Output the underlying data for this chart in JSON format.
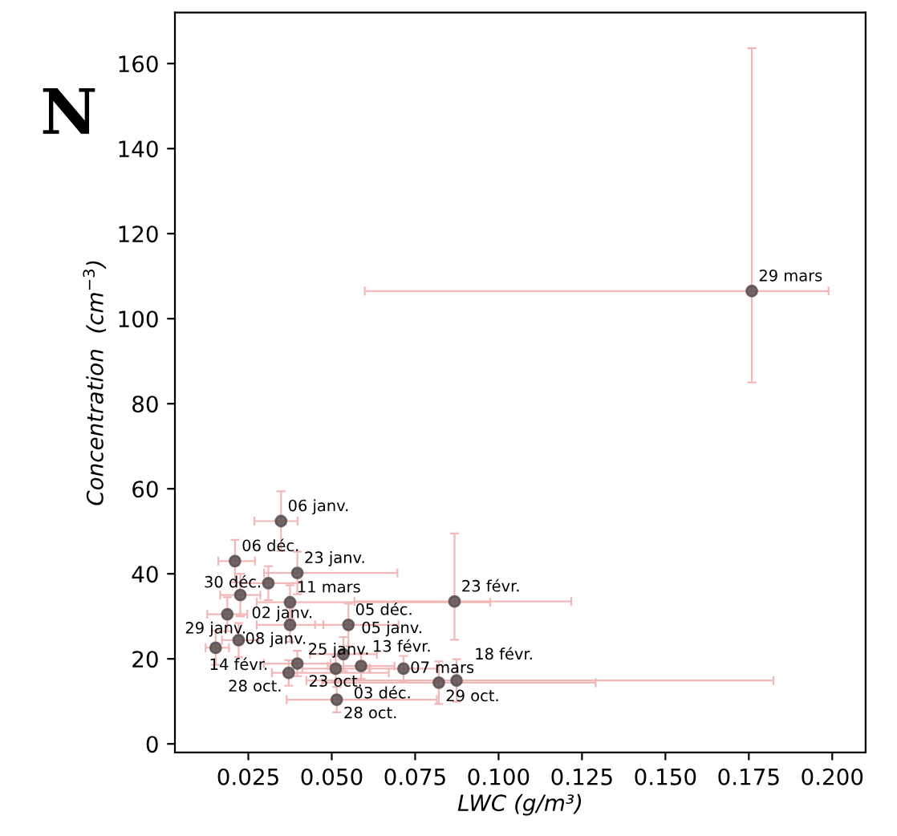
{
  "chart_data": {
    "type": "scatter",
    "xlabel": "LWC (g/m³)",
    "ylabel": "Concentration  (cm$^{−3}$)",
    "x": [
      0.0348,
      0.021,
      0.0397,
      0.031,
      0.0226,
      0.0375,
      0.0187,
      0.0375,
      0.055,
      0.0868,
      0.0221,
      0.0152,
      0.0535,
      0.0397,
      0.0371,
      0.0512,
      0.0588,
      0.0715,
      0.0821,
      0.0874,
      0.0515,
      0.1759
    ],
    "values": [
      52.4,
      43.0,
      40.2,
      37.8,
      35.0,
      33.3,
      30.5,
      28.0,
      28.0,
      33.5,
      24.4,
      22.6,
      21.1,
      18.9,
      16.7,
      17.7,
      18.3,
      17.7,
      14.4,
      14.9,
      10.4,
      106.5
    ],
    "errors": [
      [
        45.4,
        59.4
      ],
      [
        38,
        48
      ],
      [
        35.2,
        45.2
      ],
      [
        33.8,
        41.8
      ],
      [
        30,
        40
      ],
      [
        29.3,
        37.3
      ],
      [
        26.5,
        34.5
      ],
      [
        24,
        32
      ],
      [
        23,
        33
      ],
      [
        24.5,
        49.5
      ],
      [
        20.4,
        28.4
      ],
      [
        18.6,
        26.6
      ],
      [
        17.1,
        25.1
      ],
      [
        15.9,
        21.9
      ],
      [
        13.7,
        19.7
      ],
      [
        14.7,
        20.7
      ],
      [
        15.3,
        21.3
      ],
      [
        14.7,
        20.7
      ],
      [
        9.4,
        19.4
      ],
      [
        9.9,
        19.9
      ],
      [
        7.4,
        13.4
      ],
      [
        85,
        163.6
      ]
    ],
    "xerrors": [
      [
        0.0268,
        0.0398
      ],
      [
        0.016,
        0.027
      ],
      [
        0.0297,
        0.0697
      ],
      [
        0.023,
        0.041
      ],
      [
        0.0166,
        0.0286
      ],
      [
        0.0275,
        0.0975
      ],
      [
        0.0127,
        0.0247
      ],
      [
        0.0275,
        0.0475
      ],
      [
        0.045,
        0.07
      ],
      [
        0.0568,
        0.1218
      ],
      [
        0.0171,
        0.0281
      ],
      [
        0.0122,
        0.0192
      ],
      [
        0.0435,
        0.0635
      ],
      [
        0.0297,
        0.0497
      ],
      [
        0.0321,
        0.0671
      ],
      [
        0.0412,
        0.0612
      ],
      [
        0.0488,
        0.0688
      ],
      [
        0.0615,
        0.0815
      ],
      [
        0.0471,
        0.1291
      ],
      [
        0.0424,
        0.1824
      ],
      [
        0.0365,
        0.0815
      ],
      [
        0.0599,
        0.1989
      ]
    ],
    "color": "#5a4f4f",
    "annotations": [
      "N",
      {
        "text": "06 janv.",
        "x": 0.0348,
        "y": 52.4
      },
      {
        "text": "06 déc.",
        "x": 0.021,
        "y": 43.0
      },
      {
        "text": "23 janv.",
        "x": 0.0397,
        "y": 40.2
      },
      {
        "text": "30 déc.",
        "x": 0.031,
        "y": 37.8
      },
      {
        "text": "02 janv.",
        "x": 0.0226,
        "y": 35.0
      },
      {
        "text": "11 mars",
        "x": 0.0375,
        "y": 33.3
      },
      {
        "text": "08 janv.",
        "x": 0.0187,
        "y": 30.5
      },
      {
        "text": "25 janv.",
        "x": 0.0375,
        "y": 28.0
      },
      {
        "text": "05 déc.",
        "x": 0.055,
        "y": 28.0
      },
      {
        "text": "23 févr.",
        "x": 0.0868,
        "y": 33.5
      },
      {
        "text": "14 févr.",
        "x": 0.0221,
        "y": 24.4
      },
      {
        "text": "29 janv.",
        "x": 0.0152,
        "y": 22.6
      },
      {
        "text": "05 janv.",
        "x": 0.0535,
        "y": 21.1
      },
      {
        "text": "23 oct.",
        "x": 0.0397,
        "y": 18.9
      },
      {
        "text": "28 oct.",
        "x": 0.0371,
        "y": 16.7
      },
      {
        "text": "03 déc.",
        "x": 0.0512,
        "y": 17.7
      },
      {
        "text": "13 févr.",
        "x": 0.0588,
        "y": 18.3
      },
      {
        "text": "07 mars",
        "x": 0.0715,
        "y": 17.7
      },
      {
        "text": "29 oct.",
        "x": 0.0821,
        "y": 14.4
      },
      {
        "text": "18 févr.",
        "x": 0.0874,
        "y": 14.9
      },
      {
        "text": "28 oct.",
        "x": 0.0515,
        "y": 10.4
      },
      {
        "text": "29 mars",
        "x": 0.1759,
        "y": 106.5
      }
    ],
    "xlim": [
      0.003,
      0.21
    ],
    "ylim": [
      -2,
      172
    ],
    "xticks": [
      {
        "value": 0.025,
        "label": "0.025"
      },
      {
        "value": 0.05,
        "label": "0.050"
      },
      {
        "value": 0.075,
        "label": "0.075"
      },
      {
        "value": 0.1,
        "label": "0.100"
      },
      {
        "value": 0.125,
        "label": "0.125"
      },
      {
        "value": 0.15,
        "label": "0.150"
      },
      {
        "value": 0.175,
        "label": "0.175"
      },
      {
        "value": 0.2,
        "label": "0.200"
      }
    ],
    "yticks": [
      0,
      20,
      40,
      60,
      80,
      100,
      120,
      140,
      160
    ],
    "grid": false,
    "legend": false,
    "marker": "circle"
  }
}
